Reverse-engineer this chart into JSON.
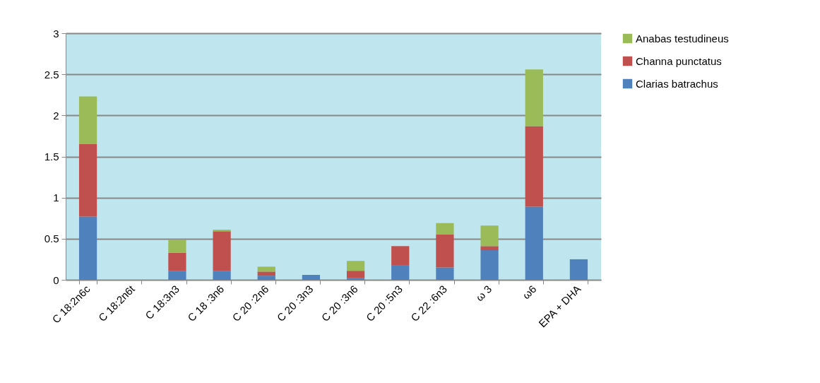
{
  "chart_data": {
    "type": "bar",
    "stacked": true,
    "categories": [
      "C 18:2n6c",
      "C 18:2n6t",
      "C 18:3n3",
      "C 18 :3n6",
      "C 20 :2n6",
      "C 20 :3n3",
      "C 20 :3n6",
      "C 20 :5n3",
      "C 22 :6n3",
      "ω 3",
      "ω6",
      "EPA + DHA"
    ],
    "series": [
      {
        "name": "Clarias batrachus",
        "color": "#4f81bd",
        "values": [
          0.77,
          0,
          0.11,
          0.11,
          0.05,
          0.06,
          0.02,
          0.18,
          0.15,
          0.36,
          0.89,
          0.25
        ]
      },
      {
        "name": "Channa punctatus",
        "color": "#c0504d",
        "values": [
          0.88,
          0,
          0.22,
          0.48,
          0.05,
          0,
          0.09,
          0.23,
          0.4,
          0.05,
          0.98,
          0
        ]
      },
      {
        "name": "Anabas  testudineus",
        "color": "#9bbb59",
        "values": [
          0.58,
          0,
          0.16,
          0.02,
          0.06,
          0,
          0.12,
          0,
          0.14,
          0.25,
          0.69,
          0
        ]
      }
    ],
    "ylim": [
      0,
      3
    ],
    "yticks": [
      0,
      0.5,
      1,
      1.5,
      2,
      2.5,
      3
    ],
    "grid": "y",
    "legend": "right"
  }
}
